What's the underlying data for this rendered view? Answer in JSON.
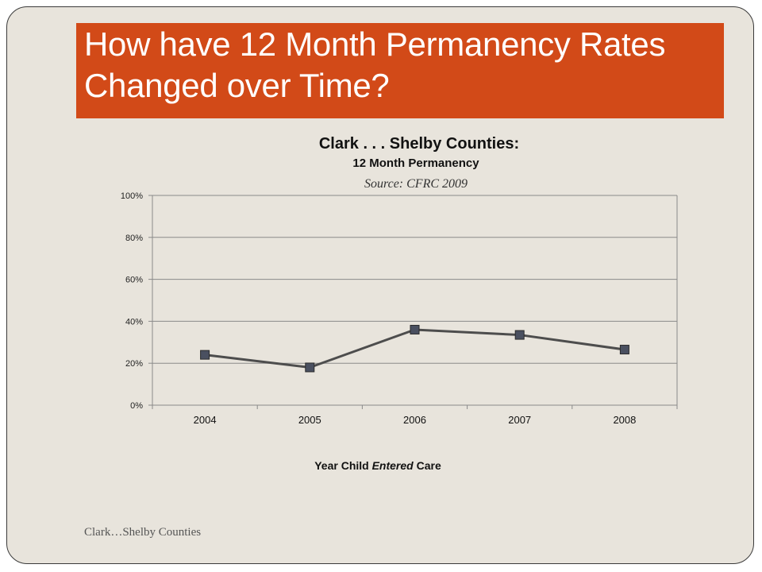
{
  "slide": {
    "title": "How have 12 Month Permanency Rates Changed over Time?",
    "footer": "Clark…Shelby Counties"
  },
  "colors": {
    "title_bar": "#d24a18",
    "slide_background": "#e8e4dc",
    "series_line": "#4d4d4d",
    "marker_fill": "#4a5060"
  },
  "chart_data": {
    "type": "line",
    "title": "Clark . . . Shelby Counties:",
    "subtitle": "12 Month Permanency",
    "source": "Source: CFRC 2009",
    "xlabel": {
      "before": "Year Child ",
      "emphasis": "Entered",
      "after": " Care"
    },
    "ylabel": "",
    "categories": [
      "2004",
      "2005",
      "2006",
      "2007",
      "2008"
    ],
    "series": [
      {
        "values": [
          0.24,
          0.18,
          0.36,
          0.335,
          0.265
        ]
      }
    ],
    "ylim": [
      0,
      1
    ],
    "yticks": [
      0,
      0.2,
      0.4,
      0.6,
      0.8,
      1.0
    ],
    "ytick_labels": [
      "0%",
      "20%",
      "40%",
      "60%",
      "80%",
      "100%"
    ],
    "grid": true,
    "legend": "none",
    "marker": "square"
  }
}
